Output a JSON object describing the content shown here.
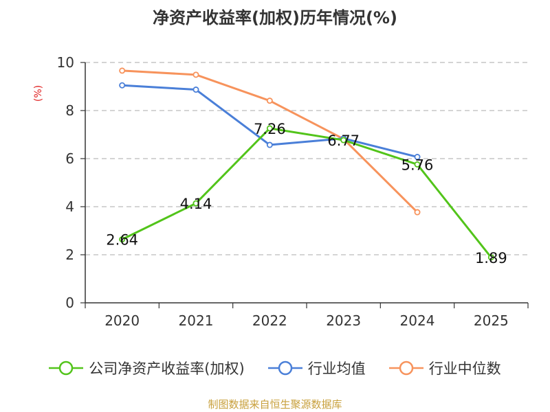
{
  "title": "净资产收益率(加权)历年情况(%)",
  "footer": "制图数据来自恒生聚源数据库",
  "chart_data": {
    "type": "line",
    "ylabel": "(%)",
    "ylim": [
      0,
      10
    ],
    "yticks": [
      0,
      2,
      4,
      6,
      8,
      10
    ],
    "grid": true,
    "legend_position": "bottom",
    "categories": [
      "2020",
      "2021",
      "2022",
      "2023",
      "2024",
      "2025"
    ],
    "series": [
      {
        "name": "公司净资产收益率(加权)",
        "color": "#52c41a",
        "values": [
          2.64,
          4.14,
          7.26,
          6.77,
          5.76,
          1.89
        ],
        "labels": [
          "2.64",
          "4.14",
          "7.26",
          "6.77",
          "5.76",
          "1.89"
        ]
      },
      {
        "name": "行业均值",
        "color": "#4a7fd8",
        "values": [
          9.05,
          8.87,
          6.57,
          6.84,
          6.07,
          null
        ]
      },
      {
        "name": "行业中位数",
        "color": "#f7935c",
        "values": [
          9.66,
          9.49,
          8.41,
          6.82,
          3.77,
          null
        ]
      }
    ]
  }
}
